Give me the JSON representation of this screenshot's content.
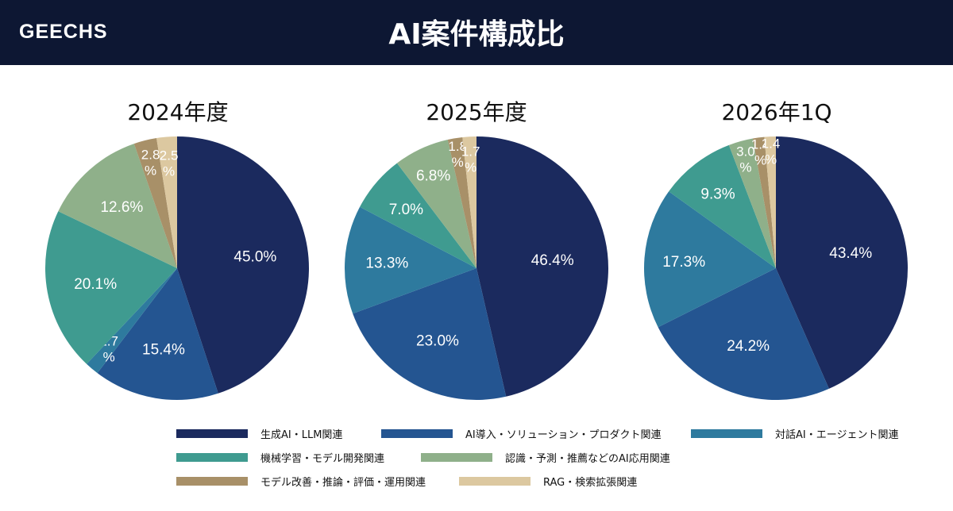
{
  "header": {
    "logo": "GEECHS",
    "title": "AI案件構成比"
  },
  "colors": {
    "header_bg": "#0d1733",
    "categories": [
      "#1b2a5e",
      "#245591",
      "#2e7a9e",
      "#3f9b90",
      "#8fb08a",
      "#a89068",
      "#dcc8a0"
    ]
  },
  "legend": [
    "生成AI・LLM関連",
    "AI導入・ソリューション・プロダクト関連",
    "対話AI・エージェント関連",
    "機械学習・モデル開発関連",
    "認識・予測・推薦などのAI応用関連",
    "モデル改善・推論・評価・運用関連",
    "RAG・検索拡張関連"
  ],
  "chart_data": [
    {
      "type": "pie",
      "title": "2024年度",
      "categories": [
        "生成AI・LLM関連",
        "AI導入・ソリューション・プロダクト関連",
        "対話AI・エージェント関連",
        "機械学習・モデル開発関連",
        "認識・予測・推薦などのAI応用関連",
        "モデル改善・推論・評価・運用関連",
        "RAG・検索拡張関連"
      ],
      "values": [
        45.0,
        15.4,
        1.7,
        20.1,
        12.6,
        2.8,
        2.5
      ],
      "labels": [
        "45.0%",
        "15.4%",
        "1.7 %",
        "20.1%",
        "12.6%",
        "2.8 %",
        "2.5 %"
      ]
    },
    {
      "type": "pie",
      "title": "2025年度",
      "categories": [
        "生成AI・LLM関連",
        "AI導入・ソリューション・プロダクト関連",
        "対話AI・エージェント関連",
        "機械学習・モデル開発関連",
        "認識・予測・推薦などのAI応用関連",
        "モデル改善・推論・評価・運用関連",
        "RAG・検索拡張関連"
      ],
      "values": [
        46.4,
        23.0,
        13.3,
        7.0,
        6.8,
        1.8,
        1.7
      ],
      "labels": [
        "46.4%",
        "23.0%",
        "13.3%",
        "7.0%",
        "6.8%",
        "1.8 %",
        "1.7 %"
      ]
    },
    {
      "type": "pie",
      "title": "2026年1Q",
      "categories": [
        "生成AI・LLM関連",
        "AI導入・ソリューション・プロダクト関連",
        "対話AI・エージェント関連",
        "機械学習・モデル開発関連",
        "認識・予測・推薦などのAI応用関連",
        "モデル改善・推論・評価・運用関連",
        "RAG・検索拡張関連"
      ],
      "values": [
        43.4,
        24.2,
        17.3,
        9.3,
        3.0,
        1.4,
        1.4
      ],
      "labels": [
        "43.4%",
        "24.2%",
        "17.3%",
        "9.3%",
        "3.0 %",
        "1.4 %",
        "1.4 %"
      ]
    }
  ]
}
